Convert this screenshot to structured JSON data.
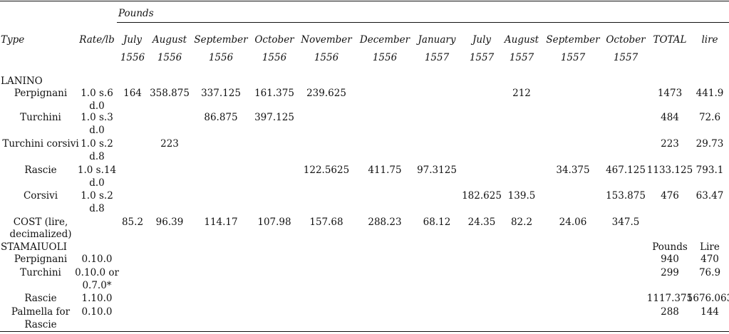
{
  "header": {
    "group_label": "Pounds",
    "type_label": "Type",
    "rate_label": "Rate/lb",
    "months": [
      {
        "l1": "July",
        "l2": "1556"
      },
      {
        "l1": "August",
        "l2": "1556"
      },
      {
        "l1": "September",
        "l2": "1556"
      },
      {
        "l1": "October",
        "l2": "1556"
      },
      {
        "l1": "November",
        "l2": "1556"
      },
      {
        "l1": "December",
        "l2": "1556"
      },
      {
        "l1": "January",
        "l2": "1557"
      },
      {
        "l1": "July",
        "l2": "1557"
      },
      {
        "l1": "August",
        "l2": "1557"
      },
      {
        "l1": "September",
        "l2": "1557"
      },
      {
        "l1": "October",
        "l2": "1557"
      }
    ],
    "total_label": "TOTAL",
    "lire_label": "lire"
  },
  "lanino": {
    "section_label": "LANINO",
    "rows": [
      {
        "type": "Perpignani",
        "rate1": "1.0 s.6",
        "rate2": "d.0",
        "values": [
          "164",
          "358.875",
          "337.125",
          "161.375",
          "239.625",
          "",
          "",
          "",
          "212",
          "",
          ""
        ],
        "total": "1473",
        "lire": "441.9"
      },
      {
        "type": "Turchini",
        "rate1": "1.0 s.3",
        "rate2": "d.0",
        "values": [
          "",
          "",
          "86.875",
          "397.125",
          "",
          "",
          "",
          "",
          "",
          "",
          ""
        ],
        "total": "484",
        "lire": "72.6"
      },
      {
        "type": "Turchini corsivi",
        "rate1": "1.0 s.2",
        "rate2": "d.8",
        "values": [
          "",
          "223",
          "",
          "",
          "",
          "",
          "",
          "",
          "",
          "",
          ""
        ],
        "total": "223",
        "lire": "29.73"
      },
      {
        "type": "Rascie",
        "rate1": "1.0 s.14",
        "rate2": "d.0",
        "values": [
          "",
          "",
          "",
          "",
          "122.5625",
          "411.75",
          "97.3125",
          "",
          "",
          "34.375",
          "467.125"
        ],
        "total": "1133.125",
        "lire": "793.1"
      },
      {
        "type": "Corsivi",
        "rate1": "1.0 s.2",
        "rate2": "d.8",
        "values": [
          "",
          "",
          "",
          "",
          "",
          "",
          "",
          "182.625",
          "139.5",
          "",
          "153.875"
        ],
        "total": "476",
        "lire": "63.47"
      }
    ],
    "cost": {
      "label1": "COST (lire,",
      "label2": "decimalized)",
      "values": [
        "85.2",
        "96.39",
        "114.17",
        "107.98",
        "157.68",
        "288.23",
        "68.12",
        "24.35",
        "82.2",
        "24.06",
        "347.5"
      ]
    }
  },
  "stamaiuoli": {
    "section_label": "STAMAIUOLI",
    "pounds_label": "Pounds",
    "lire_label": "Lire",
    "rows": [
      {
        "type1": "Perpignani",
        "type2": "",
        "rate1": "0.10.0",
        "rate2": "",
        "pounds": "940",
        "lire": "470"
      },
      {
        "type1": "Turchini",
        "type2": "",
        "rate1": "0.10.0 or",
        "rate2": "0.7.0*",
        "pounds": "299",
        "lire": "76.9"
      },
      {
        "type1": "Rascie",
        "type2": "",
        "rate1": "1.10.0",
        "rate2": "",
        "pounds": "1117.375",
        "lire": "1676.063"
      },
      {
        "type1": "Palmella for",
        "type2": "Rascie",
        "rate1": "0.10.0",
        "rate2": "",
        "pounds": "288",
        "lire": "144"
      }
    ]
  }
}
